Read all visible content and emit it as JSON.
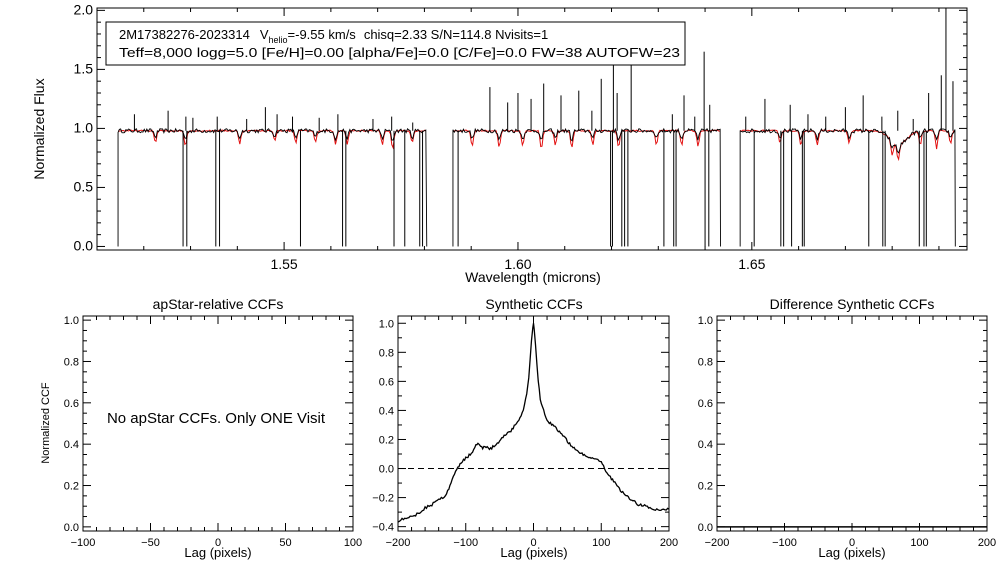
{
  "chart_data": [
    {
      "type": "line",
      "panel": "spectrum",
      "info_box": {
        "star_id": "2M17382276-2023314",
        "v_sym": "V",
        "v_sub": "helio",
        "v_value": "=-9.55 km/s",
        "stats": "chisq=2.33  S/N=114.8  Nvisits=1",
        "line2": "Teff=8,000 logg=5.0 [Fe/H]=0.00 [alpha/Fe]=0.0 [C/Fe]=0.0 FW=38 AUTOFW=23"
      },
      "xlabel": "Wavelength (microns)",
      "ylabel": "Normalized Flux",
      "xlim": [
        1.51,
        1.696
      ],
      "ylim": [
        -0.03,
        2.02
      ],
      "x_ticks": [
        1.55,
        1.6,
        1.65
      ],
      "x_tick_labels": [
        "1.55",
        "1.60",
        "1.65"
      ],
      "y_ticks": [
        0,
        0.5,
        1,
        1.5,
        2
      ],
      "y_tick_labels": [
        "0.0",
        "0.5",
        "1.0",
        "1.5",
        "2.0"
      ],
      "chips": [
        [
          1.5145,
          1.5805
        ],
        [
          1.5861,
          1.6433
        ],
        [
          1.6475,
          1.6935
        ]
      ],
      "continuum": 0.98,
      "emission_spikes": [
        [
          1.518,
          1.12
        ],
        [
          1.5252,
          1.15
        ],
        [
          1.529,
          1.1
        ],
        [
          1.5305,
          1.09
        ],
        [
          1.5357,
          1.1
        ],
        [
          1.542,
          1.08
        ],
        [
          1.546,
          1.18
        ],
        [
          1.5485,
          1.12
        ],
        [
          1.5518,
          1.1
        ],
        [
          1.5575,
          1.09
        ],
        [
          1.5615,
          1.12
        ],
        [
          1.569,
          1.08
        ],
        [
          1.573,
          1.1
        ],
        [
          1.5775,
          1.05
        ],
        [
          1.594,
          1.35
        ],
        [
          1.5978,
          1.22
        ],
        [
          1.6,
          1.3
        ],
        [
          1.6028,
          1.25
        ],
        [
          1.6055,
          1.38
        ],
        [
          1.6092,
          1.28
        ],
        [
          1.613,
          1.32
        ],
        [
          1.6158,
          1.15
        ],
        [
          1.6178,
          1.42
        ],
        [
          1.6204,
          1.85
        ],
        [
          1.6212,
          1.3
        ],
        [
          1.6242,
          1.55
        ],
        [
          1.633,
          1.12
        ],
        [
          1.6355,
          1.28
        ],
        [
          1.6378,
          1.1
        ],
        [
          1.6398,
          1.65
        ],
        [
          1.641,
          1.2
        ],
        [
          1.6487,
          1.1
        ],
        [
          1.6528,
          1.25
        ],
        [
          1.6582,
          1.2
        ],
        [
          1.662,
          1.12
        ],
        [
          1.6658,
          1.1
        ],
        [
          1.67,
          1.18
        ],
        [
          1.6738,
          1.28
        ],
        [
          1.6778,
          1.1
        ],
        [
          1.6812,
          1.15
        ],
        [
          1.6845,
          1.08
        ],
        [
          1.6878,
          1.3
        ],
        [
          1.6905,
          1.45
        ],
        [
          1.6915,
          2.02
        ],
        [
          1.693,
          1.4
        ]
      ],
      "dropouts": [
        1.5284,
        1.5292,
        1.5354,
        1.5362,
        1.5535,
        1.5625,
        1.5632,
        1.5735,
        1.5758,
        1.579,
        1.5796,
        1.5872,
        1.6198,
        1.6202,
        1.6222,
        1.6228,
        1.6235,
        1.6312,
        1.6333,
        1.6338,
        1.64,
        1.6408,
        1.6505,
        1.6562,
        1.6568,
        1.6585,
        1.6608,
        1.6612,
        1.675,
        1.678,
        1.6785,
        1.6858,
        1.6868,
        1.6873
      ],
      "model_absorption": [
        [
          1.5225,
          0.88
        ],
        [
          1.5289,
          0.85
        ],
        [
          1.5405,
          0.87
        ],
        [
          1.548,
          0.9
        ],
        [
          1.5525,
          0.88
        ],
        [
          1.5567,
          0.88
        ],
        [
          1.561,
          0.86
        ],
        [
          1.5635,
          0.87
        ],
        [
          1.571,
          0.86
        ],
        [
          1.5732,
          0.82
        ],
        [
          1.5774,
          0.88
        ],
        [
          1.5902,
          0.85
        ],
        [
          1.596,
          0.84
        ],
        [
          1.601,
          0.85
        ],
        [
          1.605,
          0.82
        ],
        [
          1.608,
          0.86
        ],
        [
          1.6115,
          0.83
        ],
        [
          1.616,
          0.86
        ],
        [
          1.6215,
          0.84
        ],
        [
          1.6296,
          0.86
        ],
        [
          1.635,
          0.86
        ],
        [
          1.6385,
          0.85
        ],
        [
          1.656,
          0.88
        ],
        [
          1.6605,
          0.85
        ],
        [
          1.664,
          0.86
        ],
        [
          1.6708,
          0.87
        ],
        [
          1.68,
          0.86
        ],
        [
          1.6813,
          0.85
        ],
        [
          1.686,
          0.86
        ],
        [
          1.6895,
          0.83
        ],
        [
          1.6925,
          0.87
        ]
      ],
      "model_broad_dips": [
        [
          1.6813,
          0.0025,
          0.12
        ]
      ],
      "series": [
        {
          "name": "Observed spectrum",
          "color": "#000000"
        },
        {
          "name": "Best-fit model",
          "color": "#e31010"
        }
      ]
    },
    {
      "type": "line",
      "panel": "apstar_ccf",
      "title": "apStar-relative CCFs",
      "xlabel": "Lag (pixels)",
      "ylabel": "Normalized CCF",
      "xlim": [
        -100,
        100
      ],
      "ylim": [
        -0.02,
        1.02
      ],
      "x_ticks": [
        -100,
        -50,
        0,
        50,
        100
      ],
      "x_tick_labels": [
        "−100",
        "−50",
        "0",
        "50",
        "100"
      ],
      "y_ticks": [
        0,
        0.2,
        0.4,
        0.6,
        0.8,
        1.0
      ],
      "y_tick_labels": [
        "0.0",
        "0.2",
        "0.4",
        "0.6",
        "0.8",
        "1.0"
      ],
      "annotation": "No apStar CCFs.  Only ONE Visit",
      "series": []
    },
    {
      "type": "line",
      "panel": "synthetic_ccf",
      "title": "Synthetic CCFs",
      "xlabel": "Lag (pixels)",
      "xlim": [
        -200,
        200
      ],
      "ylim": [
        -0.43,
        1.05
      ],
      "x_ticks": [
        -200,
        -100,
        0,
        100,
        200
      ],
      "x_tick_labels": [
        "−200",
        "−100",
        "0",
        "100",
        "200"
      ],
      "y_ticks": [
        -0.4,
        -0.2,
        0,
        0.2,
        0.4,
        0.6,
        0.8,
        1.0
      ],
      "y_tick_labels": [
        "−0.4",
        "−0.2",
        "0.0",
        "0.2",
        "0.4",
        "0.6",
        "0.8",
        "1.0"
      ],
      "zero_line": 0,
      "series": [
        {
          "name": "Synthetic CCF",
          "color": "#000000",
          "x": [
            -200,
            -190,
            -180,
            -170,
            -160,
            -150,
            -140,
            -130,
            -125,
            -120,
            -115,
            -110,
            -105,
            -100,
            -95,
            -90,
            -85,
            -82,
            -78,
            -75,
            -70,
            -65,
            -60,
            -55,
            -50,
            -45,
            -40,
            -35,
            -30,
            -25,
            -20,
            -15,
            -10,
            -7,
            -5,
            -3,
            -1,
            0,
            1,
            3,
            5,
            7,
            10,
            15,
            20,
            25,
            30,
            35,
            40,
            45,
            50,
            55,
            60,
            65,
            70,
            75,
            80,
            85,
            90,
            95,
            100,
            105,
            110,
            115,
            120,
            125,
            130,
            135,
            140,
            145,
            150,
            155,
            160,
            170,
            180,
            190,
            200
          ],
          "y": [
            -0.36,
            -0.34,
            -0.33,
            -0.31,
            -0.27,
            -0.25,
            -0.21,
            -0.19,
            -0.14,
            -0.08,
            -0.02,
            0.02,
            0.05,
            0.07,
            0.09,
            0.12,
            0.16,
            0.18,
            0.16,
            0.14,
            0.15,
            0.13,
            0.15,
            0.16,
            0.19,
            0.22,
            0.24,
            0.25,
            0.28,
            0.31,
            0.35,
            0.41,
            0.52,
            0.62,
            0.75,
            0.88,
            0.97,
            1.0,
            0.96,
            0.85,
            0.72,
            0.6,
            0.48,
            0.4,
            0.33,
            0.31,
            0.29,
            0.27,
            0.24,
            0.22,
            0.19,
            0.16,
            0.14,
            0.12,
            0.11,
            0.09,
            0.08,
            0.07,
            0.06,
            0.07,
            0.04,
            0.0,
            -0.04,
            -0.07,
            -0.1,
            -0.13,
            -0.16,
            -0.18,
            -0.2,
            -0.22,
            -0.23,
            -0.26,
            -0.25,
            -0.27,
            -0.28,
            -0.29,
            -0.28
          ]
        }
      ]
    },
    {
      "type": "line",
      "panel": "difference_ccf",
      "title": "Difference Synthetic CCFs",
      "xlabel": "Lag (pixels)",
      "xlim": [
        -200,
        200
      ],
      "ylim": [
        -0.02,
        1.02
      ],
      "x_ticks": [
        -200,
        -100,
        0,
        100,
        200
      ],
      "x_tick_labels": [
        "−200",
        "−100",
        "0",
        "100",
        "200"
      ],
      "y_ticks": [
        0,
        0.2,
        0.4,
        0.6,
        0.8,
        1.0
      ],
      "y_tick_labels": [
        "0.0",
        "0.2",
        "0.4",
        "0.6",
        "0.8",
        "1.0"
      ],
      "series": [
        {
          "name": "Difference CCF",
          "color": "#000000",
          "x": [
            -200,
            200
          ],
          "y": [
            0,
            0
          ]
        }
      ]
    }
  ]
}
